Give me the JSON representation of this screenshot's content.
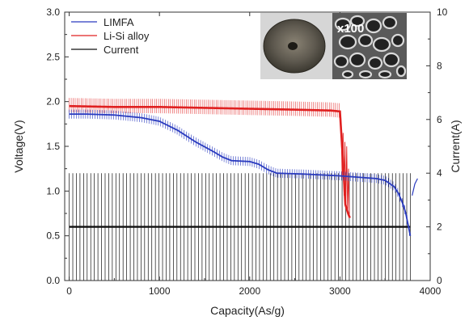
{
  "chart_data": {
    "type": "line",
    "title": "",
    "xlabel": "Capacity(As/g)",
    "ylabel_left": "Voltage(V)",
    "ylabel_right": "Current(A)",
    "xlim": [
      -50,
      4000
    ],
    "ylim_left": [
      0,
      3.0
    ],
    "ylim_right": [
      0,
      10
    ],
    "x_ticks": [
      0,
      1000,
      2000,
      3000,
      4000
    ],
    "y_left_ticks": [
      "0.0",
      "0.5",
      "1.0",
      "1.5",
      "2.0",
      "2.5",
      "3.0"
    ],
    "y_right_ticks": [
      0,
      2,
      4,
      6,
      8,
      10
    ],
    "legend_position": "top-left",
    "grid": false,
    "inset_label": "x100",
    "series": [
      {
        "name": "LIMFA",
        "color": "#2a3bbf",
        "axis": "left",
        "x": [
          0,
          200,
          500,
          800,
          1000,
          1200,
          1400,
          1600,
          1700,
          1800,
          2000,
          2100,
          2200,
          2300,
          2600,
          3000,
          3400,
          3500,
          3600,
          3650,
          3700,
          3730,
          3760,
          3780
        ],
        "y": [
          1.86,
          1.86,
          1.85,
          1.82,
          1.78,
          1.68,
          1.55,
          1.44,
          1.38,
          1.34,
          1.33,
          1.3,
          1.24,
          1.2,
          1.19,
          1.17,
          1.14,
          1.12,
          1.05,
          0.97,
          0.85,
          0.75,
          0.6,
          0.5
        ],
        "oscillation": 0.05
      },
      {
        "name": "Li-Si alloy",
        "color": "#e02020",
        "axis": "left",
        "x": [
          0,
          500,
          1000,
          1500,
          2000,
          2500,
          2900,
          3000,
          3030,
          3060,
          3090,
          3110
        ],
        "y": [
          1.95,
          1.94,
          1.94,
          1.93,
          1.92,
          1.91,
          1.9,
          1.89,
          1.4,
          0.85,
          0.75,
          0.7
        ],
        "oscillation": 0.07
      },
      {
        "name": "Current",
        "color": "#111111",
        "axis": "right",
        "pulse_high": 4.0,
        "pulse_low": 2.0,
        "x_start": 0,
        "x_end": 3780,
        "pulse_count": 95
      }
    ]
  }
}
